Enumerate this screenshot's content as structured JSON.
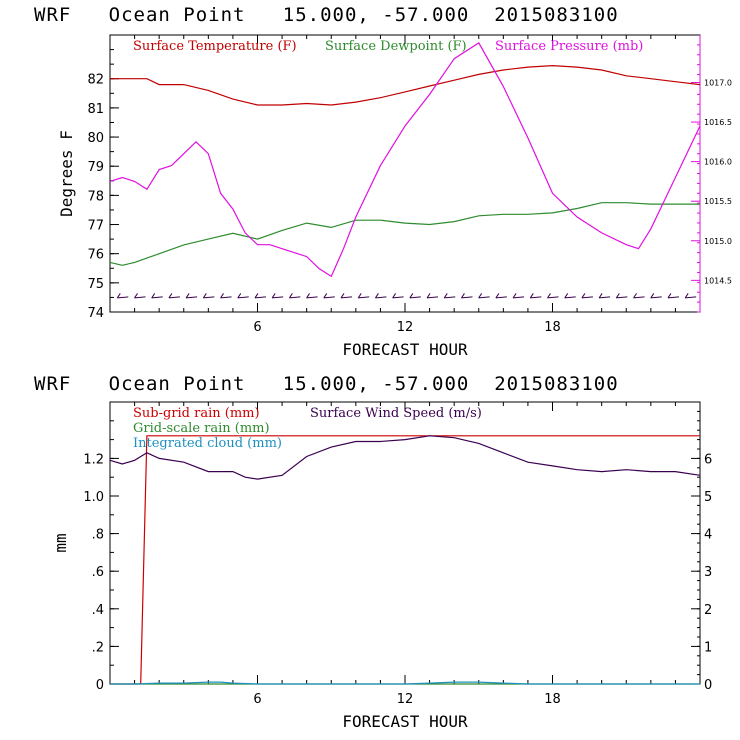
{
  "header_top": {
    "title": "WRF   Ocean Point   15.000, -57.000  2015083100"
  },
  "header_bottom": {
    "title": "WRF   Ocean Point   15.000, -57.000  2015083100"
  },
  "colors": {
    "temperature": "#c00000",
    "dewpoint": "#2e8b2e",
    "pressure": "#e010e0",
    "subgrid_rain": "#cc0000",
    "gridscale_rain": "#2e8b2e",
    "cloud": "#1e90c0",
    "wind": "#3a0050",
    "barbs": "#3a0050"
  },
  "chart_data": [
    {
      "type": "line",
      "xlabel": "FORECAST HOUR",
      "ylabel": "Degrees F",
      "xlim": [
        0,
        24
      ],
      "ylim": [
        74,
        83.5
      ],
      "x_ticks": [
        6,
        12,
        18
      ],
      "x_tick_labels": [
        "6",
        "12",
        "18"
      ],
      "y_ticks": [
        74,
        75,
        76,
        77,
        78,
        79,
        80,
        81,
        82
      ],
      "y_tick_labels": [
        "74",
        "75",
        "76",
        "77",
        "78",
        "79",
        "80",
        "81",
        "82"
      ],
      "y2lim": [
        1014.1,
        1017.6
      ],
      "y2_ticks": [
        1014.5,
        1015.0,
        1015.5,
        1016.0,
        1016.5,
        1017.0
      ],
      "y2_tick_labels": [
        "1014.5",
        "1015.0",
        "1015.5",
        "1016.0",
        "1016.5",
        "1017.0"
      ],
      "legend": [
        "Surface Temperature (F)",
        "Surface Dewpoint (F)",
        "Surface Pressure (mb)"
      ],
      "series": [
        {
          "name": "Surface Temperature (F)",
          "axis": "left",
          "x": [
            0,
            1,
            1.5,
            2,
            3,
            4,
            5,
            6,
            7,
            8,
            9,
            10,
            11,
            12,
            13,
            14,
            15,
            16,
            17,
            18,
            19,
            20,
            21,
            22,
            23,
            24
          ],
          "y": [
            82.0,
            82.0,
            82.0,
            81.8,
            81.8,
            81.6,
            81.3,
            81.1,
            81.1,
            81.15,
            81.1,
            81.2,
            81.35,
            81.55,
            81.75,
            81.95,
            82.15,
            82.3,
            82.4,
            82.45,
            82.4,
            82.3,
            82.1,
            82.0,
            81.9,
            81.8
          ]
        },
        {
          "name": "Surface Dewpoint (F)",
          "axis": "left",
          "x": [
            0,
            0.5,
            1,
            2,
            3,
            4,
            5,
            6,
            7,
            8,
            9,
            10,
            11,
            12,
            13,
            14,
            15,
            16,
            17,
            18,
            19,
            20,
            21,
            22,
            23,
            24
          ],
          "y": [
            75.7,
            75.6,
            75.7,
            76.0,
            76.3,
            76.5,
            76.7,
            76.5,
            76.8,
            77.05,
            76.9,
            77.15,
            77.15,
            77.05,
            77.0,
            77.1,
            77.3,
            77.35,
            77.35,
            77.4,
            77.55,
            77.75,
            77.75,
            77.7,
            77.7,
            77.7
          ]
        },
        {
          "name": "Surface Pressure (mb)",
          "axis": "right",
          "x": [
            0,
            0.5,
            1,
            1.5,
            2,
            2.5,
            3,
            3.5,
            4,
            4.5,
            5,
            5.5,
            6,
            6.5,
            7,
            8,
            8.5,
            9,
            9.5,
            10,
            11,
            12,
            13,
            14,
            15,
            16,
            17,
            18,
            19,
            20,
            21,
            21.5,
            22,
            23,
            24
          ],
          "y": [
            1015.75,
            1015.8,
            1015.75,
            1015.65,
            1015.9,
            1015.95,
            1016.1,
            1016.25,
            1016.1,
            1015.6,
            1015.4,
            1015.1,
            1014.95,
            1014.95,
            1014.9,
            1014.8,
            1014.65,
            1014.55,
            1014.9,
            1015.3,
            1015.95,
            1016.45,
            1016.85,
            1017.3,
            1017.5,
            1016.95,
            1016.3,
            1015.6,
            1015.3,
            1015.1,
            1014.95,
            1014.9,
            1015.15,
            1015.8,
            1016.45
          ]
        }
      ],
      "wind_barbs": {
        "y": 74.5,
        "x_start": 0.5,
        "x_end": 23.9,
        "step": 0.7
      }
    },
    {
      "type": "line",
      "xlabel": "FORECAST HOUR",
      "ylabel": "mm",
      "xlim": [
        0,
        24
      ],
      "ylim": [
        0,
        1.5
      ],
      "x_ticks": [
        6,
        12,
        18
      ],
      "x_tick_labels": [
        "6",
        "12",
        "18"
      ],
      "y_ticks": [
        0,
        0.2,
        0.4,
        0.6,
        0.8,
        1.0,
        1.2
      ],
      "y_tick_labels": [
        "0",
        ".2",
        ".4",
        ".6",
        ".8",
        "1.0",
        "1.2"
      ],
      "y2lim": [
        0,
        7.5
      ],
      "y2_ticks": [
        0,
        1,
        2,
        3,
        4,
        5,
        6
      ],
      "y2_tick_labels": [
        "0",
        "1",
        "2",
        "3",
        "4",
        "5",
        "6"
      ],
      "legend": [
        "Sub-grid rain (mm)",
        "Surface Wind Speed (m/s)",
        "Grid-scale rain (mm)",
        "Integrated cloud (mm)"
      ],
      "series": [
        {
          "name": "Sub-grid rain (mm)",
          "axis": "left",
          "x": [
            0,
            1.25,
            1.5,
            24
          ],
          "y": [
            0,
            0,
            1.32,
            1.32
          ]
        },
        {
          "name": "Grid-scale rain (mm)",
          "axis": "left",
          "x": [
            0,
            24
          ],
          "y": [
            0,
            0
          ]
        },
        {
          "name": "Integrated cloud (mm)",
          "axis": "left",
          "x": [
            0,
            1,
            2,
            3,
            4,
            4.5,
            5,
            6,
            12,
            13,
            14,
            15,
            16,
            17,
            24
          ],
          "y": [
            0,
            0,
            0.005,
            0.005,
            0.01,
            0.01,
            0.005,
            0,
            0,
            0.005,
            0.01,
            0.01,
            0.005,
            0,
            0
          ]
        },
        {
          "name": "Surface Wind Speed (m/s)",
          "axis": "right",
          "x": [
            0,
            0.5,
            1,
            1.5,
            2,
            3,
            4,
            5,
            5.5,
            6,
            7,
            8,
            9,
            10,
            11,
            12,
            13,
            14,
            15,
            16,
            17,
            18,
            19,
            20,
            21,
            22,
            23,
            24
          ],
          "y": [
            5.95,
            5.85,
            5.95,
            6.15,
            6.0,
            5.9,
            5.65,
            5.65,
            5.5,
            5.45,
            5.55,
            6.05,
            6.3,
            6.45,
            6.45,
            6.5,
            6.6,
            6.55,
            6.4,
            6.15,
            5.9,
            5.8,
            5.7,
            5.65,
            5.7,
            5.65,
            5.65,
            5.55
          ]
        }
      ]
    }
  ]
}
